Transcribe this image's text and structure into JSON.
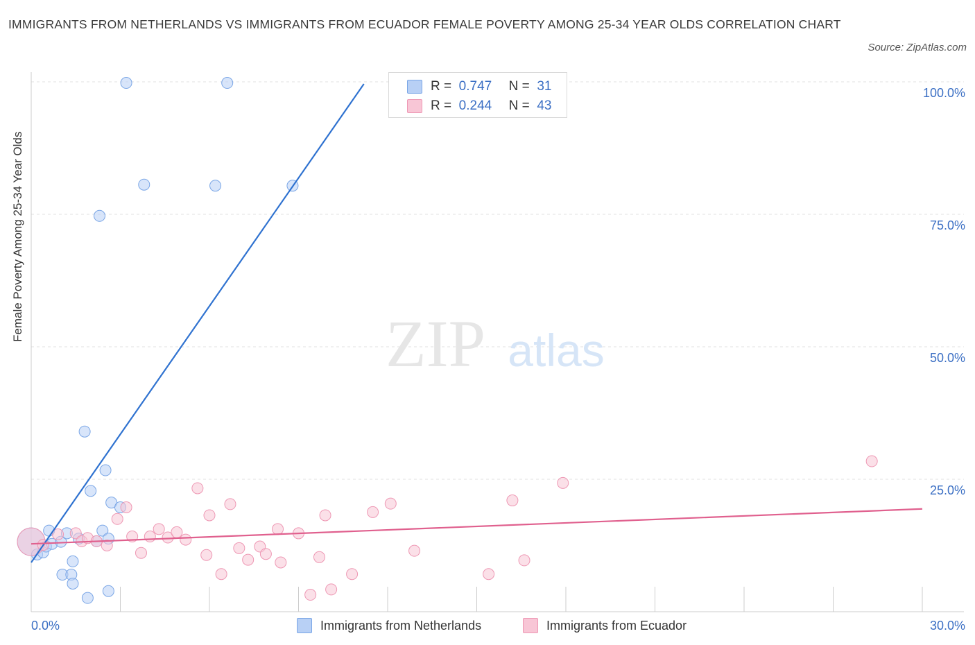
{
  "title": "IMMIGRANTS FROM NETHERLANDS VS IMMIGRANTS FROM ECUADOR FEMALE POVERTY AMONG 25-34 YEAR OLDS CORRELATION CHART",
  "source": "Source: ZipAtlas.com",
  "watermark": {
    "zip": "ZIP",
    "atlas": "atlas"
  },
  "legend": {
    "r_label": "R =",
    "n_label": "N =",
    "rows": [
      {
        "r": "0.747",
        "n": "31"
      },
      {
        "r": "0.244",
        "n": "43"
      }
    ]
  },
  "colors": {
    "netherlands_fill": "#b8d0f5",
    "netherlands_stroke": "#7aa6e6",
    "netherlands_line": "#2f72d0",
    "ecuador_fill": "#f8c6d6",
    "ecuador_stroke": "#ee98b4",
    "ecuador_line": "#e0608e",
    "axis_label": "#3b6fc4",
    "grid": "#e2e2e2"
  },
  "chart_data": {
    "type": "scatter",
    "title": "IMMIGRANTS FROM NETHERLANDS VS IMMIGRANTS FROM ECUADOR FEMALE POVERTY AMONG 25-34 YEAR OLDS CORRELATION CHART",
    "xlabel": "",
    "ylabel": "Female Poverty Among 25-34 Year Olds",
    "xlim": [
      0,
      30
    ],
    "ylim": [
      0,
      100
    ],
    "x_tick_labels": [
      "0.0%",
      "30.0%"
    ],
    "y_ticks": [
      25,
      50,
      75,
      100
    ],
    "y_tick_labels": [
      "25.0%",
      "50.0%",
      "75.0%",
      "100.0%"
    ],
    "grid": true,
    "legend_position": "top-center",
    "series": [
      {
        "name": "Immigrants from Netherlands",
        "r": 0.747,
        "n": 31,
        "trend": {
          "x0": 0,
          "y0": 9.3,
          "x1": 11.2,
          "y1": 99.6
        },
        "points": [
          [
            0.0,
            13.2,
            "large"
          ],
          [
            0.2,
            10.8
          ],
          [
            0.4,
            11.2
          ],
          [
            0.5,
            12.3
          ],
          [
            0.6,
            15.3
          ],
          [
            0.7,
            12.8
          ],
          [
            1.0,
            13.2
          ],
          [
            1.2,
            14.8
          ],
          [
            1.4,
            9.5
          ],
          [
            1.6,
            13.8
          ],
          [
            1.05,
            7.0
          ],
          [
            1.35,
            7.0
          ],
          [
            1.4,
            5.3
          ],
          [
            1.9,
            2.6
          ],
          [
            2.2,
            13.3
          ],
          [
            2.4,
            15.3
          ],
          [
            2.6,
            13.8
          ],
          [
            2.6,
            3.9
          ],
          [
            2.7,
            20.6
          ],
          [
            3.0,
            19.7
          ],
          [
            2.0,
            22.8
          ],
          [
            2.5,
            26.7
          ],
          [
            1.8,
            34.0
          ],
          [
            2.3,
            74.7
          ],
          [
            3.8,
            80.6
          ],
          [
            6.2,
            80.4
          ],
          [
            8.8,
            80.4
          ],
          [
            3.2,
            99.8
          ],
          [
            6.6,
            99.8
          ]
        ]
      },
      {
        "name": "Immigrants from Ecuador",
        "r": 0.244,
        "n": 43,
        "trend": {
          "x0": 0,
          "y0": 12.8,
          "x1": 30,
          "y1": 19.4
        },
        "points": [
          [
            0.0,
            13.2,
            "large"
          ],
          [
            0.4,
            12.6
          ],
          [
            0.9,
            14.6
          ],
          [
            1.5,
            14.8
          ],
          [
            1.7,
            13.3
          ],
          [
            1.9,
            13.9
          ],
          [
            2.2,
            13.3
          ],
          [
            2.55,
            12.5
          ],
          [
            2.9,
            17.5
          ],
          [
            3.2,
            19.7
          ],
          [
            3.4,
            14.2
          ],
          [
            3.7,
            11.1
          ],
          [
            4.0,
            14.2
          ],
          [
            4.3,
            15.6
          ],
          [
            4.6,
            14.0
          ],
          [
            4.9,
            15.0
          ],
          [
            5.2,
            13.6
          ],
          [
            5.6,
            23.3
          ],
          [
            5.9,
            10.7
          ],
          [
            6.0,
            18.2
          ],
          [
            6.4,
            7.1
          ],
          [
            6.7,
            20.3
          ],
          [
            7.0,
            12.0
          ],
          [
            7.3,
            9.8
          ],
          [
            7.7,
            12.3
          ],
          [
            7.9,
            10.9
          ],
          [
            8.3,
            15.6
          ],
          [
            8.4,
            9.3
          ],
          [
            9.0,
            14.8
          ],
          [
            9.4,
            3.2
          ],
          [
            9.7,
            10.3
          ],
          [
            9.9,
            18.2
          ],
          [
            10.1,
            4.2
          ],
          [
            10.8,
            7.1
          ],
          [
            11.5,
            18.8
          ],
          [
            12.1,
            20.4
          ],
          [
            12.9,
            11.5
          ],
          [
            15.4,
            7.1
          ],
          [
            16.2,
            21.0
          ],
          [
            16.6,
            9.7
          ],
          [
            17.9,
            24.3
          ],
          [
            28.3,
            28.4
          ]
        ]
      }
    ]
  },
  "bottom_legend": [
    "Immigrants from Netherlands",
    "Immigrants from Ecuador"
  ]
}
